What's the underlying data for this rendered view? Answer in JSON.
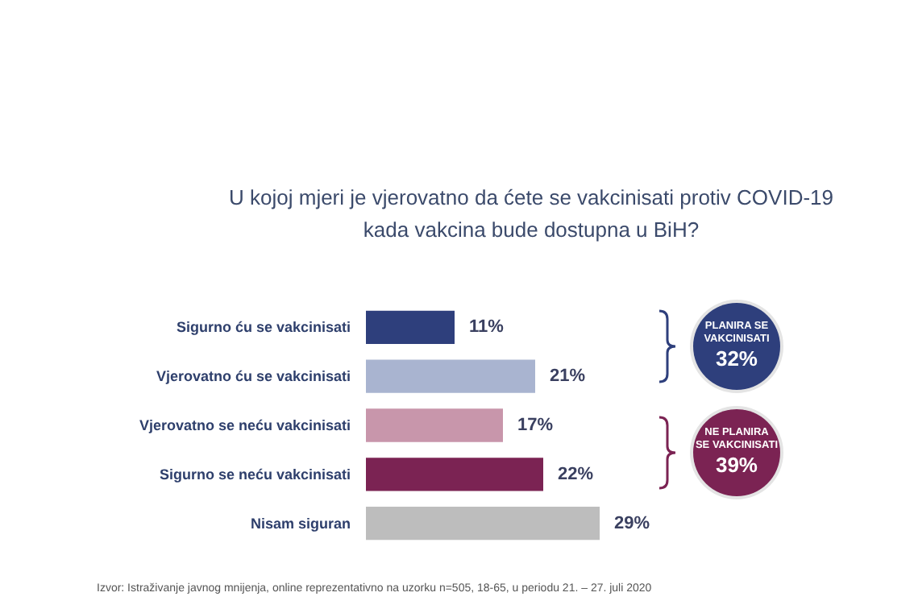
{
  "chart_data": {
    "type": "bar",
    "orientation": "horizontal",
    "title": "U kojoj mjeri je vjerovatno da ćete se vakcinisati protiv COVID-19\nkada vakcina bude dostupna u BiH?",
    "categories": [
      "Sigurno ću se vakcinisati",
      "Vjerovatno ću se vakcinisati",
      "Vjerovatno se neću vakcinisati",
      "Sigurno se neću vakcinisati",
      "Nisam siguran"
    ],
    "values": [
      11,
      21,
      17,
      22,
      29
    ],
    "value_labels": [
      "11%",
      "21%",
      "17%",
      "22%",
      "29%"
    ],
    "colors": [
      "#2e3f7c",
      "#a9b4d0",
      "#c896ab",
      "#7b2353",
      "#bdbdbd"
    ],
    "annotations": [
      "PLANIRA SE\nVAKCINISATI\n32%",
      "NE PLANIRA\nSE VAKCINISATI\n39%",
      "Izvor: Istraživanje javnog mnijenja, online reprezentativno na uzorku n=505, 18-65, u periodu 21. – 27. juli 2020"
    ]
  }
}
